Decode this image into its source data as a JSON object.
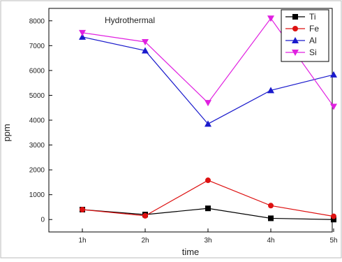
{
  "chart_data": {
    "type": "line",
    "title": "Hydrothermal",
    "xlabel": "time",
    "ylabel": "ppm",
    "categories": [
      "1h",
      "2h",
      "3h",
      "4h",
      "5h"
    ],
    "ylim": [
      -500,
      8500
    ],
    "yticks": [
      0,
      1000,
      2000,
      3000,
      4000,
      5000,
      6000,
      7000,
      8000
    ],
    "grid": false,
    "legend_position": "top-right",
    "series": [
      {
        "name": "Ti",
        "color": "#000000",
        "marker": "square",
        "values": [
          400,
          200,
          450,
          50,
          0
        ]
      },
      {
        "name": "Fe",
        "color": "#dd1111",
        "marker": "circle",
        "values": [
          400,
          150,
          1580,
          560,
          130
        ]
      },
      {
        "name": "Al",
        "color": "#1a1acc",
        "marker": "triangle-up",
        "values": [
          7350,
          6800,
          3850,
          5200,
          5830
        ]
      },
      {
        "name": "Si",
        "color": "#e020e0",
        "marker": "triangle-down",
        "values": [
          7520,
          7150,
          4700,
          8100,
          4550
        ]
      }
    ]
  }
}
